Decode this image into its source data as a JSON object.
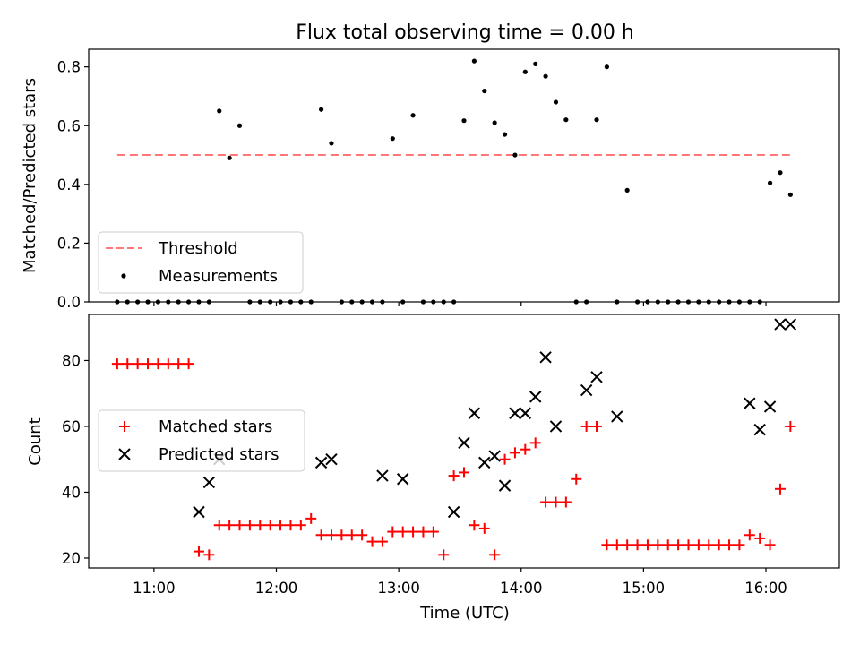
{
  "chart_data": [
    {
      "type": "scatter",
      "title": "Flux total observing time = 0.00 h",
      "xlabel": "",
      "ylabel": "Matched/Predicted stars",
      "xlim": [
        "10:28",
        "16:36"
      ],
      "ylim": [
        0,
        0.86
      ],
      "yticks": [
        0.0,
        0.2,
        0.4,
        0.6,
        0.8
      ],
      "ytick_labels": [
        "0.0",
        "0.2",
        "0.4",
        "0.6",
        "0.8"
      ],
      "xticks": [
        "11:00",
        "12:00",
        "13:00",
        "14:00",
        "15:00",
        "16:00"
      ],
      "grid": false,
      "legend_position": "lower-left",
      "threshold": {
        "label": "Threshold",
        "value": 0.5,
        "x_start": "10:42",
        "x_end": "16:12",
        "color": "#ff7777"
      },
      "series": [
        {
          "name": "Measurements",
          "color": "#000000",
          "x": [
            "10:42",
            "10:47",
            "10:52",
            "10:57",
            "11:02",
            "11:07",
            "11:12",
            "11:17",
            "11:22",
            "11:27",
            "11:32",
            "11:37",
            "11:42",
            "11:47",
            "11:52",
            "11:57",
            "12:02",
            "12:07",
            "12:12",
            "12:17",
            "12:22",
            "12:27",
            "12:32",
            "12:37",
            "12:42",
            "12:47",
            "12:52",
            "12:57",
            "13:02",
            "13:07",
            "13:12",
            "13:17",
            "13:22",
            "13:27",
            "13:32",
            "13:37",
            "13:42",
            "13:47",
            "13:52",
            "13:57",
            "14:02",
            "14:07",
            "14:12",
            "14:17",
            "14:22",
            "14:27",
            "14:32",
            "14:37",
            "14:42",
            "14:47",
            "14:52",
            "14:57",
            "15:02",
            "15:07",
            "15:12",
            "15:17",
            "15:22",
            "15:27",
            "15:32",
            "15:37",
            "15:42",
            "15:47",
            "15:52",
            "15:57",
            "16:02",
            "16:07",
            "16:12"
          ],
          "y": [
            0,
            0,
            0,
            0,
            0,
            0,
            0,
            0,
            0,
            0,
            0.65,
            0.49,
            0.6,
            0,
            0,
            0,
            0,
            0,
            0,
            0,
            0.655,
            0.54,
            0,
            0,
            0,
            0,
            0,
            0.556,
            0,
            0.635,
            0,
            0,
            0,
            0,
            0.617,
            0.82,
            0.718,
            0.61,
            0.57,
            0.5,
            0.783,
            0.81,
            0.768,
            0.68,
            0.62,
            0,
            0,
            0.62,
            0.8,
            0,
            0.38,
            0,
            0,
            0,
            0,
            0,
            0,
            0,
            0,
            0,
            0,
            0,
            0,
            0,
            0.405,
            0.44,
            0.365
          ]
        }
      ]
    },
    {
      "type": "scatter",
      "title": "",
      "xlabel": "Time (UTC)",
      "ylabel": "Count",
      "xlim": [
        "10:28",
        "16:36"
      ],
      "ylim": [
        17,
        94
      ],
      "yticks": [
        20,
        40,
        60,
        80
      ],
      "ytick_labels": [
        "20",
        "40",
        "60",
        "80"
      ],
      "xticks": [
        "11:00",
        "12:00",
        "13:00",
        "14:00",
        "15:00",
        "16:00"
      ],
      "grid": false,
      "legend_position": "center-left",
      "series": [
        {
          "name": "Matched stars",
          "marker": "plus",
          "color": "#ff0000",
          "x": [
            "10:42",
            "10:47",
            "10:52",
            "10:57",
            "11:02",
            "11:07",
            "11:12",
            "11:17",
            "11:22",
            "11:27",
            "11:32",
            "11:37",
            "11:42",
            "11:47",
            "11:52",
            "11:57",
            "12:02",
            "12:07",
            "12:12",
            "12:17",
            "12:22",
            "12:27",
            "12:32",
            "12:37",
            "12:42",
            "12:47",
            "12:52",
            "12:57",
            "13:02",
            "13:07",
            "13:12",
            "13:17",
            "13:22",
            "13:27",
            "13:32",
            "13:37",
            "13:42",
            "13:47",
            "13:52",
            "13:57",
            "14:02",
            "14:07",
            "14:12",
            "14:17",
            "14:22",
            "14:27",
            "14:32",
            "14:37",
            "14:42",
            "14:47",
            "14:52",
            "14:57",
            "15:02",
            "15:07",
            "15:12",
            "15:17",
            "15:22",
            "15:27",
            "15:32",
            "15:37",
            "15:42",
            "15:47",
            "15:52",
            "15:57",
            "16:02",
            "16:07",
            "16:12"
          ],
          "y": [
            79,
            79,
            79,
            79,
            79,
            79,
            79,
            79,
            22,
            21,
            30,
            30,
            30,
            30,
            30,
            30,
            30,
            30,
            30,
            32,
            27,
            27,
            27,
            27,
            27,
            25,
            25,
            28,
            28,
            28,
            28,
            28,
            21,
            45,
            46,
            30,
            29,
            21,
            50,
            52,
            53,
            55,
            37,
            37,
            37,
            44,
            60,
            60,
            24,
            24,
            24,
            24,
            24,
            24,
            24,
            24,
            24,
            24,
            24,
            24,
            24,
            24,
            27,
            26,
            24,
            41,
            60
          ]
        },
        {
          "name": "Predicted stars",
          "marker": "x",
          "color": "#000000",
          "x": [
            "11:22",
            "11:27",
            "11:32",
            "12:22",
            "12:27",
            "12:52",
            "13:02",
            "13:27",
            "13:32",
            "13:37",
            "13:42",
            "13:47",
            "13:52",
            "13:57",
            "14:02",
            "14:07",
            "14:12",
            "14:17",
            "14:32",
            "14:37",
            "14:47",
            "15:52",
            "15:57",
            "16:02",
            "16:07",
            "16:12"
          ],
          "y": [
            34,
            43,
            50,
            49,
            50,
            45,
            44,
            34,
            55,
            64,
            49,
            51,
            42,
            64,
            64,
            69,
            81,
            60,
            71,
            75,
            63,
            67,
            59,
            66,
            91,
            91
          ]
        }
      ]
    }
  ]
}
